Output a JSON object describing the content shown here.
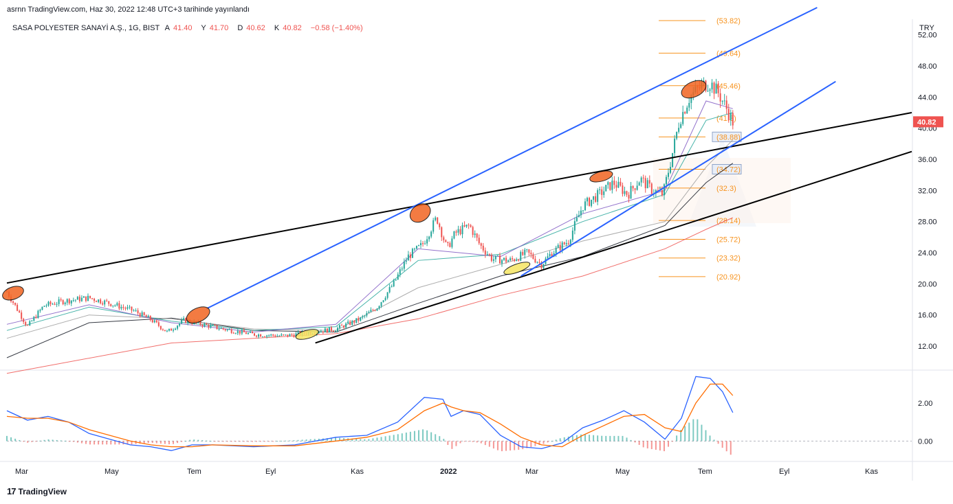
{
  "publish_note": "asrnn TradingView.com, Haz 30, 2022 12:48 UTC+3 tarihinde yayınlandı",
  "symbol": {
    "name": "SASA POLYESTER SANAYİ A.Ş., 1G, BIST",
    "o_key": "A",
    "o_val": "41.40",
    "h_key": "Y",
    "h_val": "41.70",
    "l_key": "D",
    "l_val": "40.62",
    "c_key": "K",
    "c_val": "40.82",
    "change": "−0.58 (−1.40%)"
  },
  "currency": "TRY",
  "last_price_label": "40.82",
  "logo_text": "TradingView",
  "colors": {
    "up": "#26a69a",
    "down": "#ef5350",
    "fib": "#f7931e",
    "channel_blue": "#2962ff",
    "trend_black": "#000000",
    "macd": "#2962ff",
    "signal": "#ff6d00",
    "ellipse": "#f26522",
    "ellipse_yellow": "#f5e663",
    "ma_red": "#ef5350"
  },
  "chart_data": {
    "type": "line",
    "x_axis": [
      "Mar",
      "May",
      "Tem",
      "Eyl",
      "Kas",
      "2022",
      "Mar",
      "May",
      "Tem",
      "Eyl",
      "Kas"
    ],
    "y_ticks": [
      12,
      16,
      20,
      24,
      28,
      32,
      36,
      40,
      44,
      48,
      52
    ],
    "ylim": [
      9,
      54
    ],
    "macd_ticks": [
      0,
      2
    ],
    "fib_levels": [
      {
        "value": 53.82,
        "label": "(53.82)",
        "boxed": false
      },
      {
        "value": 49.64,
        "label": "(49.64)",
        "boxed": false
      },
      {
        "value": 45.46,
        "label": "(45.46)",
        "boxed": false
      },
      {
        "value": 41.3,
        "label": "(41.3)",
        "boxed": false
      },
      {
        "value": 38.88,
        "label": "(38.88)",
        "boxed": true
      },
      {
        "value": 34.72,
        "label": "(34.72)",
        "boxed": true
      },
      {
        "value": 32.3,
        "label": "(32.3)",
        "boxed": false
      },
      {
        "value": 28.14,
        "label": "(28.14)",
        "boxed": false
      },
      {
        "value": 25.72,
        "label": "(25.72)",
        "boxed": false
      },
      {
        "value": 23.32,
        "label": "(23.32)",
        "boxed": false
      },
      {
        "value": 20.92,
        "label": "(20.92)",
        "boxed": false
      }
    ],
    "price_path": [
      {
        "t": 0.0,
        "v": 19.0
      },
      {
        "t": 1.0,
        "v": 14.5
      },
      {
        "t": 1.8,
        "v": 17.2
      },
      {
        "t": 2.8,
        "v": 17.8
      },
      {
        "t": 4.0,
        "v": 18.2
      },
      {
        "t": 5.0,
        "v": 17.5
      },
      {
        "t": 6.2,
        "v": 16.5
      },
      {
        "t": 7.0,
        "v": 15.4
      },
      {
        "t": 7.8,
        "v": 13.8
      },
      {
        "t": 8.6,
        "v": 15.3
      },
      {
        "t": 9.5,
        "v": 14.8
      },
      {
        "t": 10.5,
        "v": 14.2
      },
      {
        "t": 12.0,
        "v": 13.5
      },
      {
        "t": 13.5,
        "v": 13.3
      },
      {
        "t": 14.8,
        "v": 13.8
      },
      {
        "t": 16.0,
        "v": 14.2
      },
      {
        "t": 17.2,
        "v": 15.5
      },
      {
        "t": 18.0,
        "v": 17.0
      },
      {
        "t": 18.8,
        "v": 20.0
      },
      {
        "t": 19.5,
        "v": 23.5
      },
      {
        "t": 20.2,
        "v": 25.0
      },
      {
        "t": 20.9,
        "v": 28.5
      },
      {
        "t": 21.4,
        "v": 24.5
      },
      {
        "t": 21.8,
        "v": 26.5
      },
      {
        "t": 22.5,
        "v": 27.5
      },
      {
        "t": 23.0,
        "v": 25.0
      },
      {
        "t": 23.6,
        "v": 23.2
      },
      {
        "t": 24.5,
        "v": 23.0
      },
      {
        "t": 25.3,
        "v": 24.0
      },
      {
        "t": 26.0,
        "v": 22.5
      },
      {
        "t": 26.5,
        "v": 24.0
      },
      {
        "t": 27.3,
        "v": 25.5
      },
      {
        "t": 28.0,
        "v": 30.0
      },
      {
        "t": 28.8,
        "v": 31.5
      },
      {
        "t": 29.5,
        "v": 33.0
      },
      {
        "t": 30.2,
        "v": 31.5
      },
      {
        "t": 30.8,
        "v": 33.5
      },
      {
        "t": 31.4,
        "v": 32.0
      },
      {
        "t": 31.9,
        "v": 31.5
      },
      {
        "t": 32.3,
        "v": 36.0
      },
      {
        "t": 32.7,
        "v": 41.0
      },
      {
        "t": 33.2,
        "v": 44.0
      },
      {
        "t": 33.8,
        "v": 45.5
      },
      {
        "t": 34.2,
        "v": 45.8
      },
      {
        "t": 34.6,
        "v": 44.5
      },
      {
        "t": 35.0,
        "v": 42.5
      },
      {
        "t": 35.3,
        "v": 40.82
      }
    ],
    "moving_averages": [
      {
        "color": "#ef5350",
        "points": [
          [
            0,
            8.5
          ],
          [
            8,
            12.4
          ],
          [
            16,
            13.6
          ],
          [
            20,
            15.5
          ],
          [
            24,
            18.5
          ],
          [
            28,
            21.0
          ],
          [
            32,
            24.5
          ],
          [
            34,
            27.0
          ],
          [
            35.3,
            28.5
          ]
        ]
      },
      {
        "color": "#131722",
        "points": [
          [
            0,
            10.5
          ],
          [
            4,
            15.0
          ],
          [
            8,
            15.6
          ],
          [
            12,
            14.0
          ],
          [
            16,
            13.8
          ],
          [
            20,
            17.5
          ],
          [
            24,
            21.0
          ],
          [
            28,
            23.5
          ],
          [
            32,
            27.5
          ],
          [
            34,
            33.0
          ],
          [
            35.3,
            35.5
          ]
        ]
      },
      {
        "color": "#9e9e9e",
        "points": [
          [
            0,
            13.0
          ],
          [
            4,
            16.0
          ],
          [
            8,
            15.5
          ],
          [
            12,
            14.2
          ],
          [
            16,
            14.0
          ],
          [
            20,
            19.5
          ],
          [
            24,
            22.5
          ],
          [
            28,
            25.5
          ],
          [
            32,
            28.0
          ],
          [
            34,
            35.0
          ],
          [
            35.3,
            38.5
          ]
        ]
      },
      {
        "color": "#26a69a",
        "points": [
          [
            0,
            14.0
          ],
          [
            4,
            17.0
          ],
          [
            8,
            15.2
          ],
          [
            12,
            14.0
          ],
          [
            16,
            14.5
          ],
          [
            20,
            23.0
          ],
          [
            24,
            23.8
          ],
          [
            28,
            28.0
          ],
          [
            32,
            31.5
          ],
          [
            34,
            41.0
          ],
          [
            35.3,
            42.0
          ]
        ]
      },
      {
        "color": "#7e57c2",
        "points": [
          [
            0,
            14.8
          ],
          [
            4,
            17.3
          ],
          [
            8,
            15.0
          ],
          [
            12,
            13.8
          ],
          [
            16,
            14.8
          ],
          [
            20,
            24.5
          ],
          [
            24,
            23.5
          ],
          [
            28,
            29.0
          ],
          [
            32,
            32.0
          ],
          [
            34,
            43.5
          ],
          [
            35.3,
            42.5
          ]
        ]
      }
    ],
    "macd": [
      {
        "t": 0.0,
        "m": 1.6,
        "s": 1.3
      },
      {
        "t": 1.0,
        "m": 1.1,
        "s": 1.2
      },
      {
        "t": 2.0,
        "m": 1.3,
        "s": 1.2
      },
      {
        "t": 3.0,
        "m": 1.0,
        "s": 1.0
      },
      {
        "t": 4.0,
        "m": 0.4,
        "s": 0.6
      },
      {
        "t": 5.0,
        "m": 0.1,
        "s": 0.3
      },
      {
        "t": 6.0,
        "m": -0.2,
        "s": 0.0
      },
      {
        "t": 7.0,
        "m": -0.3,
        "s": -0.2
      },
      {
        "t": 8.0,
        "m": -0.5,
        "s": -0.3
      },
      {
        "t": 9.0,
        "m": -0.2,
        "s": -0.3
      },
      {
        "t": 10.0,
        "m": -0.2,
        "s": -0.2
      },
      {
        "t": 12.0,
        "m": -0.3,
        "s": -0.25
      },
      {
        "t": 14.0,
        "m": -0.2,
        "s": -0.25
      },
      {
        "t": 16.0,
        "m": 0.2,
        "s": 0.0
      },
      {
        "t": 17.5,
        "m": 0.3,
        "s": 0.2
      },
      {
        "t": 19.0,
        "m": 1.0,
        "s": 0.6
      },
      {
        "t": 20.3,
        "m": 2.3,
        "s": 1.6
      },
      {
        "t": 21.2,
        "m": 2.2,
        "s": 2.0
      },
      {
        "t": 21.6,
        "m": 1.3,
        "s": 1.8
      },
      {
        "t": 22.2,
        "m": 1.6,
        "s": 1.6
      },
      {
        "t": 23.0,
        "m": 1.4,
        "s": 1.5
      },
      {
        "t": 24.0,
        "m": 0.3,
        "s": 0.9
      },
      {
        "t": 25.0,
        "m": -0.3,
        "s": 0.2
      },
      {
        "t": 26.0,
        "m": -0.4,
        "s": -0.2
      },
      {
        "t": 27.0,
        "m": -0.1,
        "s": -0.3
      },
      {
        "t": 28.0,
        "m": 0.7,
        "s": 0.3
      },
      {
        "t": 29.0,
        "m": 1.1,
        "s": 0.8
      },
      {
        "t": 30.0,
        "m": 1.6,
        "s": 1.3
      },
      {
        "t": 31.0,
        "m": 1.0,
        "s": 1.4
      },
      {
        "t": 32.0,
        "m": 0.1,
        "s": 0.7
      },
      {
        "t": 32.8,
        "m": 1.2,
        "s": 0.5
      },
      {
        "t": 33.5,
        "m": 3.4,
        "s": 2.0
      },
      {
        "t": 34.2,
        "m": 3.3,
        "s": 3.0
      },
      {
        "t": 34.8,
        "m": 2.6,
        "s": 3.0
      },
      {
        "t": 35.3,
        "m": 1.5,
        "s": 2.4
      }
    ],
    "macd_range": [
      -1.0,
      3.7
    ],
    "legend": "none",
    "grid": false
  }
}
